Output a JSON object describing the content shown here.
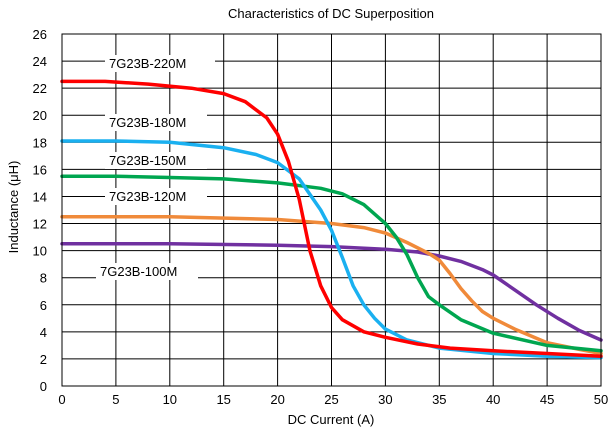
{
  "chart_data": {
    "type": "line",
    "title": "Characteristics of DC Superposition",
    "xlabel": "DC Current (A)",
    "ylabel": "Inductance (μH)",
    "xlim": [
      0,
      50
    ],
    "ylim": [
      0,
      26
    ],
    "xticks": [
      0,
      5,
      10,
      15,
      20,
      25,
      30,
      35,
      40,
      45,
      50
    ],
    "yticks": [
      0,
      2,
      4,
      6,
      8,
      10,
      12,
      14,
      16,
      18,
      20,
      22,
      24,
      26
    ],
    "grid": true,
    "legend": "labels-on-plot",
    "series": [
      {
        "name": "7G23B-220M",
        "color": "#ff0000",
        "points": [
          [
            0,
            22.5
          ],
          [
            4,
            22.5
          ],
          [
            8,
            22.3
          ],
          [
            12,
            22.0
          ],
          [
            15,
            21.6
          ],
          [
            17,
            21.0
          ],
          [
            19,
            19.8
          ],
          [
            20,
            18.6
          ],
          [
            21,
            16.6
          ],
          [
            22,
            13.8
          ],
          [
            23,
            10.0
          ],
          [
            24,
            7.4
          ],
          [
            25,
            5.8
          ],
          [
            26,
            4.9
          ],
          [
            28,
            4.0
          ],
          [
            30,
            3.6
          ],
          [
            33,
            3.1
          ],
          [
            36,
            2.8
          ],
          [
            40,
            2.6
          ],
          [
            45,
            2.4
          ],
          [
            50,
            2.2
          ]
        ]
      },
      {
        "name": "7G23B-180M",
        "color": "#1ab0f0",
        "points": [
          [
            0,
            18.1
          ],
          [
            5,
            18.1
          ],
          [
            10,
            18.0
          ],
          [
            15,
            17.6
          ],
          [
            18,
            17.1
          ],
          [
            20,
            16.5
          ],
          [
            22,
            15.3
          ],
          [
            24,
            13.0
          ],
          [
            25,
            11.5
          ],
          [
            26,
            9.5
          ],
          [
            27,
            7.4
          ],
          [
            28,
            6.0
          ],
          [
            29,
            5.0
          ],
          [
            30,
            4.2
          ],
          [
            32,
            3.4
          ],
          [
            35,
            2.8
          ],
          [
            40,
            2.4
          ],
          [
            45,
            2.2
          ],
          [
            50,
            2.1
          ]
        ]
      },
      {
        "name": "7G23B-150M",
        "color": "#00a650",
        "points": [
          [
            0,
            15.5
          ],
          [
            5,
            15.5
          ],
          [
            10,
            15.4
          ],
          [
            15,
            15.3
          ],
          [
            20,
            15.0
          ],
          [
            24,
            14.6
          ],
          [
            26,
            14.2
          ],
          [
            28,
            13.4
          ],
          [
            30,
            12.0
          ],
          [
            31,
            11.0
          ],
          [
            32,
            9.7
          ],
          [
            33,
            8.0
          ],
          [
            34,
            6.6
          ],
          [
            35,
            6.0
          ],
          [
            37,
            4.9
          ],
          [
            40,
            3.9
          ],
          [
            45,
            3.0
          ],
          [
            50,
            2.6
          ]
        ]
      },
      {
        "name": "7G23B-120M",
        "color": "#f08a3a",
        "points": [
          [
            0,
            12.5
          ],
          [
            10,
            12.5
          ],
          [
            20,
            12.3
          ],
          [
            25,
            12.0
          ],
          [
            28,
            11.7
          ],
          [
            30,
            11.3
          ],
          [
            32,
            10.6
          ],
          [
            34,
            9.8
          ],
          [
            35,
            9.3
          ],
          [
            36,
            8.3
          ],
          [
            37,
            7.2
          ],
          [
            38,
            6.3
          ],
          [
            39,
            5.5
          ],
          [
            40,
            5.0
          ],
          [
            42,
            4.2
          ],
          [
            45,
            3.2
          ],
          [
            48,
            2.7
          ],
          [
            50,
            2.4
          ]
        ]
      },
      {
        "name": "7G23B-100M",
        "color": "#7030a0",
        "points": [
          [
            0,
            10.5
          ],
          [
            10,
            10.5
          ],
          [
            20,
            10.4
          ],
          [
            25,
            10.3
          ],
          [
            30,
            10.1
          ],
          [
            33,
            9.9
          ],
          [
            35,
            9.6
          ],
          [
            37,
            9.2
          ],
          [
            39,
            8.6
          ],
          [
            40,
            8.2
          ],
          [
            42,
            7.1
          ],
          [
            44,
            6.0
          ],
          [
            46,
            5.0
          ],
          [
            48,
            4.1
          ],
          [
            50,
            3.4
          ]
        ]
      }
    ]
  }
}
